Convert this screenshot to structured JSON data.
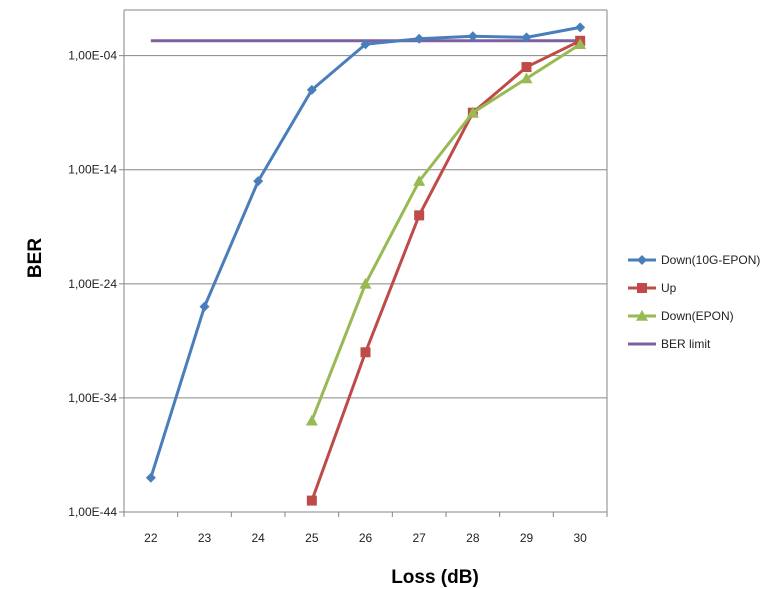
{
  "chart_data": {
    "type": "line",
    "xlabel": "Loss (dB)",
    "ylabel": "BER",
    "x": [
      22,
      23,
      24,
      25,
      26,
      27,
      28,
      29,
      30
    ],
    "y_scale": "log",
    "ylim": [
      "1,00E-44",
      "1,00E+00"
    ],
    "y_ticks": [
      "1,00E-04",
      "1,00E-14",
      "1,00E-24",
      "1,00E-34",
      "1,00E-44"
    ],
    "grid": true,
    "legend": "right",
    "series": [
      {
        "name": "Down(10G-EPON)",
        "color": "#4a7ebb",
        "marker": "diamond",
        "points": [
          [
            22,
            "1,00E-41"
          ],
          [
            23,
            "1,00E-26"
          ],
          [
            24,
            "1,00E-15"
          ],
          [
            25,
            "1,00E-07"
          ],
          [
            26,
            "1,00E-03"
          ],
          [
            27,
            "3,00E-03"
          ],
          [
            28,
            "5,00E-03"
          ],
          [
            29,
            "4,00E-03"
          ],
          [
            30,
            "3,00E-02"
          ]
        ]
      },
      {
        "name": "Up",
        "color": "#be4b48",
        "marker": "square",
        "points": [
          [
            25,
            "1,00E-43"
          ],
          [
            26,
            "1,00E-30"
          ],
          [
            27,
            "1,00E-18"
          ],
          [
            28,
            "1,00E-09"
          ],
          [
            29,
            "1,00E-05"
          ],
          [
            30,
            "2,00E-03"
          ]
        ]
      },
      {
        "name": "Down(EPON)",
        "color": "#98b954",
        "marker": "triangle",
        "points": [
          [
            25,
            "1,00E-36"
          ],
          [
            26,
            "1,00E-24"
          ],
          [
            27,
            "1,00E-15"
          ],
          [
            28,
            "1,00E-09"
          ],
          [
            29,
            "1,00E-06"
          ],
          [
            30,
            "1,00E-03"
          ]
        ]
      },
      {
        "name": "BER limit",
        "color": "#7d60a0",
        "marker": "none",
        "points": [
          [
            22,
            "2,00E-03"
          ],
          [
            30,
            "2,00E-03"
          ]
        ]
      }
    ]
  }
}
